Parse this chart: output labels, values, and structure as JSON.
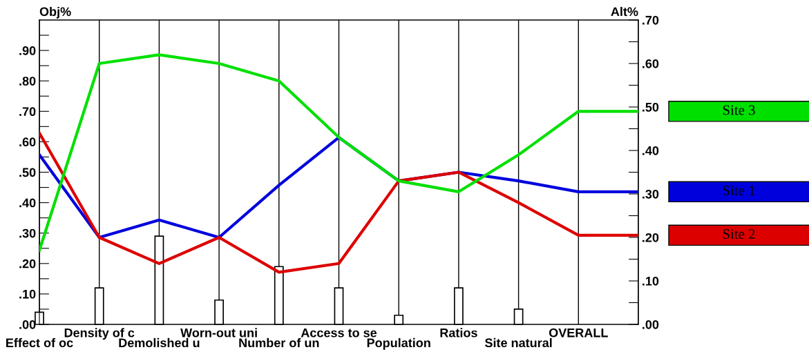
{
  "chart_data": {
    "type": "line",
    "categories": [
      "Effect of oc",
      "Density of c",
      "Demolished u",
      "Worn-out uni",
      "Number of un",
      "Access to se",
      "Population",
      "Ratios",
      "Site natural",
      "OVERALL",
      null
    ],
    "series": [
      {
        "type": "bar",
        "axis": "y",
        "color": "#ffffff",
        "values": [
          0.04,
          0.12,
          0.29,
          0.08,
          0.19,
          0.12,
          0.03,
          0.12,
          0.05,
          null,
          null
        ]
      },
      {
        "name": "Site 1",
        "axis": "y2",
        "color": "#0000dd",
        "values": [
          0.39,
          0.2,
          0.24,
          0.2,
          0.32,
          0.43,
          0.33,
          0.35,
          0.33,
          0.305,
          0.305
        ]
      },
      {
        "name": "Site 2",
        "axis": "y2",
        "color": "#dd0000",
        "values": [
          0.44,
          0.2,
          0.14,
          0.2,
          0.12,
          0.14,
          0.33,
          0.35,
          0.28,
          0.205,
          0.205
        ]
      },
      {
        "name": "Site 3",
        "axis": "y2",
        "color": "#00e000",
        "values": [
          0.17,
          0.6,
          0.62,
          0.6,
          0.56,
          0.43,
          0.33,
          0.305,
          0.39,
          0.49,
          0.49
        ]
      }
    ],
    "ylabel": "Obj%",
    "y2label": "Alt%",
    "ylim": [
      0,
      1.0
    ],
    "yticks": [
      {
        "value": 0,
        "label": ".00"
      },
      {
        "value": 0.05,
        "label": null
      },
      {
        "value": 0.1,
        "label": ".10"
      },
      {
        "value": 0.15,
        "label": null
      },
      {
        "value": 0.2,
        "label": ".20"
      },
      {
        "value": 0.25,
        "label": null
      },
      {
        "value": 0.3,
        "label": ".30"
      },
      {
        "value": 0.35,
        "label": null
      },
      {
        "value": 0.4,
        "label": ".40"
      },
      {
        "value": 0.45,
        "label": null
      },
      {
        "value": 0.5,
        "label": ".50"
      },
      {
        "value": 0.55,
        "label": null
      },
      {
        "value": 0.6,
        "label": ".60"
      },
      {
        "value": 0.65,
        "label": null
      },
      {
        "value": 0.7,
        "label": ".70"
      },
      {
        "value": 0.75,
        "label": null
      },
      {
        "value": 0.8,
        "label": ".80"
      },
      {
        "value": 0.85,
        "label": null
      },
      {
        "value": 0.9,
        "label": ".90"
      },
      {
        "value": 0.95,
        "label": null
      }
    ],
    "y2lim": [
      0,
      0.7
    ],
    "y2ticks": [
      {
        "value": 0,
        "label": ".00"
      },
      {
        "value": 0.05,
        "label": null
      },
      {
        "value": 0.1,
        "label": ".10"
      },
      {
        "value": 0.15,
        "label": null
      },
      {
        "value": 0.2,
        "label": ".20"
      },
      {
        "value": 0.25,
        "label": null
      },
      {
        "value": 0.3,
        "label": ".30"
      },
      {
        "value": 0.35,
        "label": null
      },
      {
        "value": 0.4,
        "label": ".40"
      },
      {
        "value": 0.45,
        "label": null
      },
      {
        "value": 0.5,
        "label": ".50"
      },
      {
        "value": 0.55,
        "label": null
      },
      {
        "value": 0.6,
        "label": ".60"
      },
      {
        "value": 0.65,
        "label": null
      },
      {
        "value": 0.7,
        "label": ".70"
      }
    ],
    "grid": "x",
    "legend": "right"
  }
}
